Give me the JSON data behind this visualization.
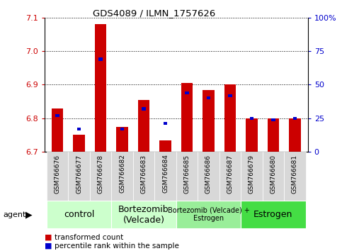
{
  "title": "GDS4089 / ILMN_1757626",
  "samples": [
    "GSM766676",
    "GSM766677",
    "GSM766678",
    "GSM766682",
    "GSM766683",
    "GSM766684",
    "GSM766685",
    "GSM766686",
    "GSM766687",
    "GSM766679",
    "GSM766680",
    "GSM766681"
  ],
  "red_values": [
    6.83,
    6.75,
    7.08,
    6.775,
    6.855,
    6.735,
    6.905,
    6.885,
    6.9,
    6.8,
    6.8,
    6.8
  ],
  "blue_values_pct": [
    27,
    17,
    69,
    17,
    32,
    21,
    44,
    40,
    42,
    25,
    24,
    25
  ],
  "ylim_left": [
    6.7,
    7.1
  ],
  "ylim_right": [
    0,
    100
  ],
  "yticks_left": [
    6.7,
    6.8,
    6.9,
    7.0,
    7.1
  ],
  "yticks_right": [
    0,
    25,
    50,
    75,
    100
  ],
  "ytick_labels_right": [
    "0",
    "25",
    "50",
    "75",
    "100%"
  ],
  "groups": [
    {
      "label": "control",
      "start": 0,
      "end": 3,
      "color": "#ccffcc",
      "fontsize": 9
    },
    {
      "label": "Bortezomib\n(Velcade)",
      "start": 3,
      "end": 6,
      "color": "#ccffcc",
      "fontsize": 9
    },
    {
      "label": "Bortezomib (Velcade) +\nEstrogen",
      "start": 6,
      "end": 9,
      "color": "#99ee99",
      "fontsize": 7
    },
    {
      "label": "Estrogen",
      "start": 9,
      "end": 12,
      "color": "#44dd44",
      "fontsize": 9
    }
  ],
  "bar_width": 0.55,
  "blue_bar_width": 0.18,
  "base_value": 6.7,
  "red_color": "#cc0000",
  "blue_color": "#0000cc",
  "grid_color": "#000000",
  "bg_color": "#ffffff",
  "tick_label_color_left": "#cc0000",
  "tick_label_color_right": "#0000cc",
  "legend_red": "transformed count",
  "legend_blue": "percentile rank within the sample",
  "agent_label": "agent"
}
